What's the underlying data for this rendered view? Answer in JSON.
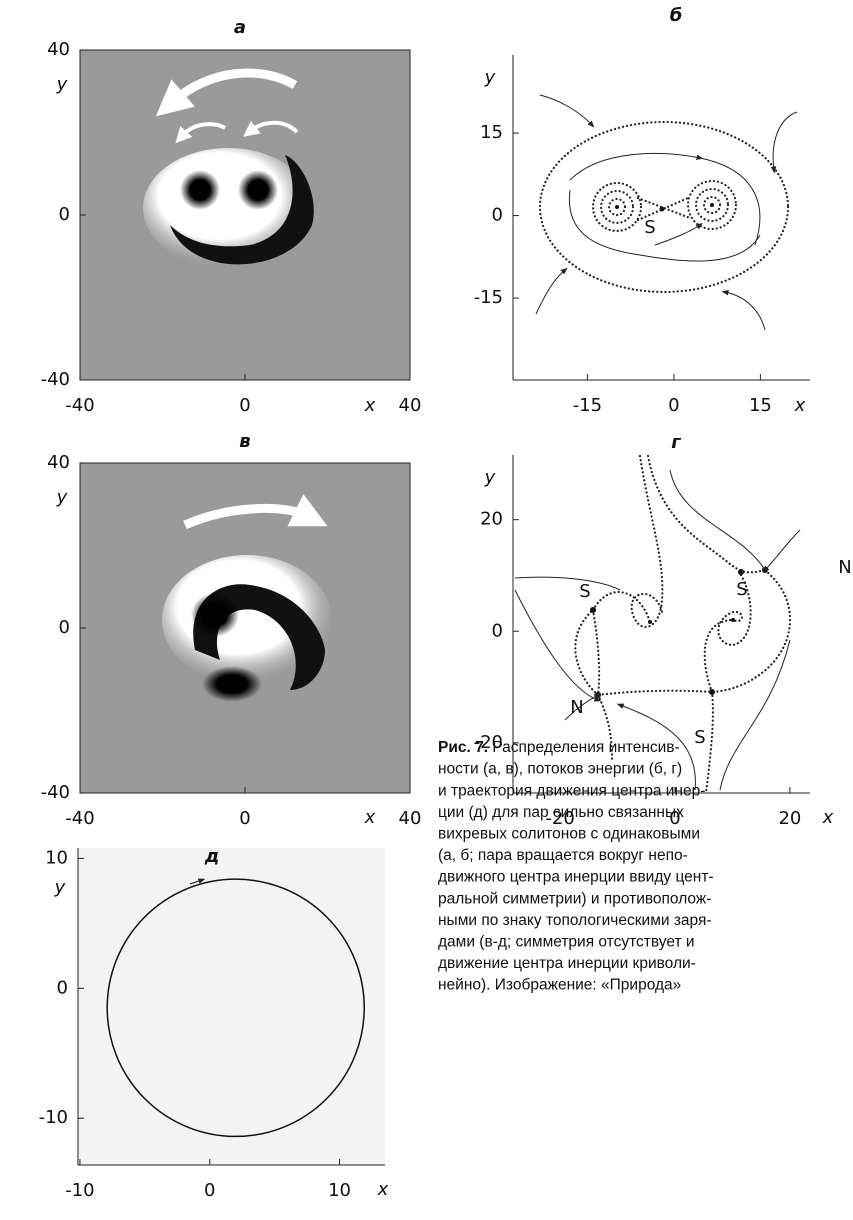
{
  "panels": [
    {
      "label": "а",
      "xlim": [
        -40,
        40
      ],
      "ylim": [
        -40,
        40
      ],
      "xticks": [
        -40,
        0,
        40
      ],
      "yticks": [
        -40,
        0,
        40
      ],
      "xlabel": "x",
      "ylabel": "y"
    },
    {
      "label": "б",
      "xlim": [
        -27.9,
        23.6
      ],
      "ylim": [
        -29.9,
        29.2
      ],
      "xticks": [
        -15,
        0,
        15
      ],
      "yticks": [
        -15,
        0,
        15
      ],
      "xlabel": "x",
      "ylabel": "y",
      "annotations": [
        "S"
      ]
    },
    {
      "label": "в",
      "xlim": [
        -40,
        40
      ],
      "ylim": [
        -40,
        40
      ],
      "xticks": [
        -40,
        0,
        40
      ],
      "yticks": [
        -40,
        0,
        40
      ],
      "xlabel": "x",
      "ylabel": "y"
    },
    {
      "label": "г",
      "xlim": [
        -28.2,
        23.5
      ],
      "ylim": [
        -29,
        31.6
      ],
      "xticks": [
        -20,
        0,
        20
      ],
      "yticks": [
        -20,
        0,
        20
      ],
      "xlabel": "x",
      "ylabel": "y",
      "annotations": [
        "S",
        "S",
        "S",
        "N",
        "N"
      ]
    },
    {
      "label": "д",
      "xlim": [
        -10.15,
        13.5
      ],
      "ylim": [
        -13.6,
        10.8
      ],
      "xticks": [
        -10,
        0,
        10
      ],
      "yticks": [
        -10,
        0,
        10
      ],
      "xlabel": "x",
      "ylabel": "y",
      "trajectory": {
        "center": [
          2,
          -1.5
        ],
        "radius": 9.9
      }
    }
  ],
  "caption": {
    "label": "Рис. 7.",
    "lines": [
      "Распределения интенсив-",
      "ности (а, в), потоков энергии (б, г)",
      "и траектория движения центра инер-",
      "ции (д) для пар сильно связанных",
      "вихревых солитонов с одинаковыми",
      "(а, б; пара вращается вокруг непо-",
      "движного центра инерции ввиду цент-",
      "ральной симметрии) и противополож-",
      "ными по знаку топологическими заря-",
      "дами (в-д; симметрия отсутствует и",
      "движение центра инерции криволи-",
      "нейно). Изображение: «Природа»"
    ]
  }
}
